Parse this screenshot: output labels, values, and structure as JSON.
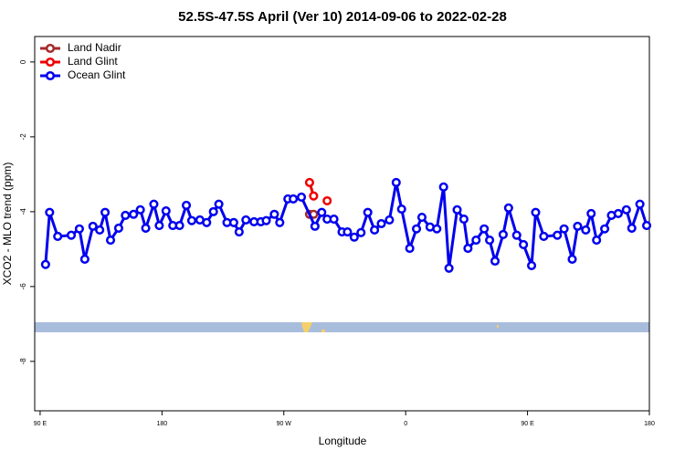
{
  "chart_data": {
    "type": "line",
    "title": "52.5S-47.5S April (Ver 10)   2014-09-06 to 2022-02-28",
    "x_label": "Longitude",
    "y_label": "XCO2 - MLO trend (ppm)",
    "xlim": [
      86,
      540
    ],
    "ylim": [
      -9.32,
      0.68
    ],
    "xticks": [
      {
        "value": 90,
        "label": "90 E"
      },
      180,
      {
        "value": 270,
        "label": "90 W"
      },
      {
        "value": 360,
        "label": "0"
      },
      {
        "value": 450,
        "label": "90 E"
      },
      {
        "value": 540,
        "label": "180"
      }
    ],
    "yticks": [
      0,
      -2,
      -4,
      -6,
      -8
    ],
    "legend": "top-left",
    "series": [
      {
        "name": "Land Nadir",
        "color": "#a52a2a",
        "x": [
          289,
          292
        ],
        "values": [
          -4.07,
          -4.07
        ]
      },
      {
        "name": "Land Glint",
        "color": "#ee0000",
        "x": [
          289,
          292,
          null,
          302
        ],
        "values": [
          -3.22,
          -3.58,
          null,
          -3.71
        ]
      },
      {
        "name": "Ocean Glint",
        "color": "#0000ee",
        "x": [
          94,
          97,
          103,
          113,
          119,
          123,
          129,
          134,
          138,
          142,
          148,
          153,
          159,
          164,
          168,
          174,
          178,
          183,
          188,
          193,
          198,
          202,
          208,
          213,
          218,
          222,
          228,
          233,
          237,
          242,
          248,
          253,
          257,
          263,
          267,
          273,
          277,
          283,
          293,
          298,
          302,
          307,
          313,
          317,
          322,
          327,
          332,
          337,
          342,
          348,
          353,
          357,
          363,
          368,
          372,
          378,
          383,
          388,
          392,
          398,
          403,
          406,
          412,
          418,
          422,
          426,
          432,
          436,
          442,
          447,
          453,
          456,
          462,
          472,
          477,
          483,
          487,
          493,
          497,
          501,
          507,
          512,
          517,
          523,
          527,
          533,
          538
        ],
        "values": [
          -5.41,
          -4.02,
          -4.66,
          -4.63,
          -4.46,
          -5.27,
          -4.39,
          -4.49,
          -4.02,
          -4.76,
          -4.44,
          -4.1,
          -4.07,
          -3.95,
          -4.44,
          -3.8,
          -4.37,
          -3.98,
          -4.37,
          -4.37,
          -3.83,
          -4.24,
          -4.22,
          -4.29,
          -4.0,
          -3.8,
          -4.29,
          -4.29,
          -4.54,
          -4.22,
          -4.27,
          -4.27,
          -4.24,
          -4.07,
          -4.29,
          -3.66,
          -3.66,
          -3.61,
          -4.39,
          -4.02,
          -4.2,
          -4.2,
          -4.54,
          -4.54,
          -4.68,
          -4.56,
          -4.02,
          -4.49,
          -4.32,
          -4.22,
          -3.22,
          -3.93,
          -4.98,
          -4.46,
          -4.15,
          -4.41,
          -4.46,
          -3.34,
          -5.51,
          -3.95,
          -4.2,
          -4.98,
          -4.76,
          -4.46,
          -4.76,
          -5.32,
          -4.61,
          -3.9,
          -4.63,
          -4.88,
          -5.44,
          -4.02,
          -4.66,
          -4.63,
          -4.46,
          -5.27,
          -4.39,
          -4.49,
          -4.05,
          -4.76,
          -4.46,
          -4.1,
          -4.05,
          -3.95,
          -4.44,
          -3.8,
          -4.37
        ]
      }
    ]
  }
}
